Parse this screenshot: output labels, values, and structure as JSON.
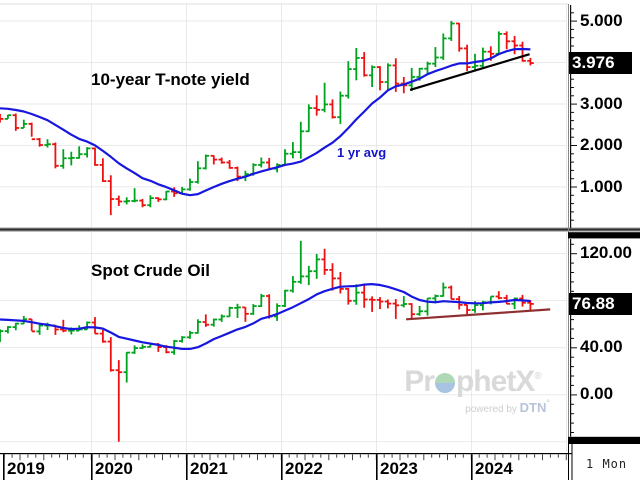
{
  "colors": {
    "bar_up": "#00a31e",
    "bar_down": "#ee1111",
    "ma_line": "#1717e0",
    "trend_black": "#000000",
    "trend_maroon": "#8f3030",
    "grid": "#e4e4e4",
    "price_box_bg": "#000000",
    "price_box_text": "#ffffff"
  },
  "watermark": {
    "brand_pre": "Pr",
    "brand_o": "o",
    "brand_post": "phetX",
    "registered_mark": "®",
    "powered_by": "powered by",
    "vendor": "DTN",
    "vendor_mark": "°"
  },
  "interval": {
    "label": "1 Mon"
  },
  "timeline": {
    "year_labels": [
      "2019",
      "2020",
      "2021",
      "2022",
      "2023",
      "2024"
    ]
  },
  "chart_data": [
    {
      "type": "ohlc",
      "title": "10-year T-note yield",
      "period": "monthly",
      "x_range": "2019-01 to 2024-08",
      "ma_label": "1 yr avg",
      "ma_window_months": 12,
      "last_price": 3.976,
      "last_price_text": "3.976",
      "y_axis": {
        "ylim": [
          0,
          5.4
        ],
        "major_step": 1,
        "minor_step": 0.2,
        "labels": [
          {
            "value": 5,
            "text": "5.000"
          },
          {
            "value": 3,
            "text": "3.000"
          },
          {
            "value": 2,
            "text": "2.000"
          },
          {
            "value": 1,
            "text": "1.000"
          }
        ]
      },
      "pre_ma_closes": [
        2.72,
        2.87,
        2.74,
        2.95,
        2.86,
        2.86,
        2.96,
        2.86,
        3.06,
        3.15,
        2.99,
        2.69
      ],
      "ohlc": [
        [
          2.66,
          2.75,
          2.54,
          2.63
        ],
        [
          2.63,
          2.73,
          2.63,
          2.72
        ],
        [
          2.72,
          2.76,
          2.34,
          2.41
        ],
        [
          2.41,
          2.61,
          2.41,
          2.51
        ],
        [
          2.51,
          2.54,
          2.2,
          2.14
        ],
        [
          2.14,
          2.17,
          1.96,
          2.0
        ],
        [
          2.0,
          2.14,
          1.94,
          2.02
        ],
        [
          2.02,
          2.06,
          1.44,
          1.5
        ],
        [
          1.5,
          1.9,
          1.43,
          1.68
        ],
        [
          1.68,
          1.84,
          1.51,
          1.69
        ],
        [
          1.69,
          1.97,
          1.67,
          1.78
        ],
        [
          1.78,
          1.95,
          1.7,
          1.92
        ],
        [
          1.92,
          1.94,
          1.5,
          1.52
        ],
        [
          1.52,
          1.68,
          1.11,
          1.13
        ],
        [
          1.13,
          1.27,
          0.31,
          0.7
        ],
        [
          0.7,
          0.78,
          0.53,
          0.64
        ],
        [
          0.64,
          0.74,
          0.57,
          0.65
        ],
        [
          0.65,
          0.96,
          0.62,
          0.66
        ],
        [
          0.66,
          0.7,
          0.5,
          0.55
        ],
        [
          0.55,
          0.79,
          0.5,
          0.72
        ],
        [
          0.72,
          0.74,
          0.63,
          0.69
        ],
        [
          0.69,
          0.89,
          0.67,
          0.88
        ],
        [
          0.88,
          0.98,
          0.75,
          0.84
        ],
        [
          0.84,
          0.99,
          0.82,
          0.93
        ],
        [
          0.93,
          1.19,
          0.9,
          1.11
        ],
        [
          1.11,
          1.61,
          1.07,
          1.44
        ],
        [
          1.44,
          1.77,
          1.41,
          1.74
        ],
        [
          1.74,
          1.75,
          1.53,
          1.65
        ],
        [
          1.65,
          1.7,
          1.55,
          1.58
        ],
        [
          1.58,
          1.64,
          1.43,
          1.45
        ],
        [
          1.45,
          1.48,
          1.13,
          1.24
        ],
        [
          1.24,
          1.38,
          1.13,
          1.3
        ],
        [
          1.3,
          1.56,
          1.26,
          1.52
        ],
        [
          1.52,
          1.7,
          1.46,
          1.58
        ],
        [
          1.58,
          1.69,
          1.41,
          1.43
        ],
        [
          1.43,
          1.56,
          1.34,
          1.52
        ],
        [
          1.52,
          1.9,
          1.51,
          1.79
        ],
        [
          1.79,
          2.07,
          1.68,
          1.83
        ],
        [
          1.83,
          2.56,
          1.67,
          2.33
        ],
        [
          2.33,
          2.98,
          2.32,
          2.89
        ],
        [
          2.89,
          3.2,
          2.71,
          2.85
        ],
        [
          2.85,
          3.5,
          2.79,
          2.98
        ],
        [
          2.98,
          3.1,
          2.64,
          2.67
        ],
        [
          2.67,
          3.29,
          2.51,
          3.19
        ],
        [
          3.19,
          4.02,
          3.12,
          3.83
        ],
        [
          3.83,
          4.34,
          3.56,
          4.1
        ],
        [
          4.1,
          4.24,
          3.65,
          3.68
        ],
        [
          3.68,
          3.92,
          3.4,
          3.88
        ],
        [
          3.88,
          3.9,
          3.32,
          3.52
        ],
        [
          3.52,
          3.97,
          3.33,
          3.92
        ],
        [
          3.92,
          4.09,
          3.28,
          3.48
        ],
        [
          3.48,
          3.64,
          3.25,
          3.44
        ],
        [
          3.44,
          3.86,
          3.3,
          3.64
        ],
        [
          3.64,
          3.86,
          3.55,
          3.84
        ],
        [
          3.84,
          4.01,
          3.73,
          3.96
        ],
        [
          3.96,
          4.36,
          3.88,
          4.11
        ],
        [
          4.11,
          4.69,
          4.05,
          4.57
        ],
        [
          4.57,
          4.99,
          4.51,
          4.93
        ],
        [
          4.93,
          4.94,
          4.25,
          4.33
        ],
        [
          4.33,
          4.42,
          3.78,
          3.88
        ],
        [
          3.88,
          4.2,
          3.81,
          3.91
        ],
        [
          3.91,
          4.35,
          3.85,
          4.25
        ],
        [
          4.25,
          4.38,
          4.03,
          4.2
        ],
        [
          4.2,
          4.74,
          4.19,
          4.68
        ],
        [
          4.68,
          4.74,
          4.31,
          4.5
        ],
        [
          4.5,
          4.63,
          4.19,
          4.4
        ],
        [
          4.4,
          4.49,
          4.01,
          4.03
        ],
        [
          4.03,
          4.1,
          3.92,
          3.976
        ]
      ],
      "trendline": {
        "i1": 51.8,
        "v1": 3.33,
        "i2": 66.9,
        "v2": 4.19,
        "color_key": "trend_black"
      }
    },
    {
      "type": "ohlc",
      "title": "Spot Crude Oil",
      "period": "monthly",
      "x_range": "2019-01 to 2024-08",
      "ma_label": "1 yr avg",
      "ma_window_months": 12,
      "last_price": 76.88,
      "last_price_text": "76.88",
      "y_axis": {
        "ylim": [
          -49,
          138
        ],
        "major_step": 40,
        "minor_step": 8,
        "labels": [
          {
            "value": 120,
            "text": "120.00"
          },
          {
            "value": 40,
            "text": "40.00"
          },
          {
            "value": 0,
            "text": "0.00"
          }
        ]
      },
      "pre_ma_closes": [
        64.7,
        61.6,
        64.9,
        68.6,
        67.0,
        74.2,
        68.8,
        69.8,
        73.3,
        65.3,
        50.9,
        45.4
      ],
      "ohlc": [
        [
          45.4,
          55.4,
          44.4,
          53.8
        ],
        [
          53.8,
          57.9,
          51.8,
          57.2
        ],
        [
          57.2,
          60.7,
          54.5,
          60.1
        ],
        [
          60.1,
          66.6,
          60.0,
          63.9
        ],
        [
          63.9,
          64.0,
          53.9,
          53.5
        ],
        [
          53.5,
          59.9,
          50.6,
          58.5
        ],
        [
          58.5,
          60.9,
          54.7,
          58.6
        ],
        [
          58.6,
          58.8,
          50.5,
          55.1
        ],
        [
          55.1,
          63.4,
          52.8,
          54.1
        ],
        [
          54.1,
          56.9,
          50.9,
          54.2
        ],
        [
          54.2,
          58.7,
          54.1,
          55.2
        ],
        [
          55.2,
          61.9,
          55.0,
          61.1
        ],
        [
          61.1,
          65.7,
          51.6,
          51.6
        ],
        [
          51.6,
          54.7,
          43.9,
          44.8
        ],
        [
          44.8,
          48.7,
          19.3,
          20.5
        ],
        [
          20.5,
          29.1,
          -40.3,
          18.8
        ],
        [
          18.8,
          35.8,
          10.1,
          35.5
        ],
        [
          35.5,
          41.6,
          34.4,
          39.3
        ],
        [
          39.3,
          42.5,
          38.5,
          40.3
        ],
        [
          40.3,
          43.8,
          39.9,
          42.6
        ],
        [
          42.6,
          43.6,
          36.1,
          40.2
        ],
        [
          40.2,
          41.9,
          34.9,
          35.8
        ],
        [
          35.8,
          46.3,
          33.6,
          45.3
        ],
        [
          45.3,
          49.4,
          44.0,
          48.5
        ],
        [
          48.5,
          53.9,
          47.2,
          52.2
        ],
        [
          52.2,
          63.8,
          51.6,
          61.5
        ],
        [
          61.5,
          68.0,
          57.3,
          59.2
        ],
        [
          59.2,
          64.4,
          57.6,
          63.6
        ],
        [
          63.6,
          68.0,
          61.6,
          66.3
        ],
        [
          66.3,
          74.5,
          66.1,
          73.5
        ],
        [
          73.5,
          77.0,
          65.0,
          73.9
        ],
        [
          73.9,
          74.2,
          61.7,
          68.5
        ],
        [
          68.5,
          76.7,
          67.6,
          75.0
        ],
        [
          75.0,
          85.4,
          74.3,
          83.6
        ],
        [
          83.6,
          85.1,
          64.4,
          66.2
        ],
        [
          66.2,
          77.3,
          62.4,
          75.2
        ],
        [
          75.2,
          88.8,
          74.3,
          88.2
        ],
        [
          88.2,
          100.5,
          86.5,
          95.7
        ],
        [
          95.7,
          130.5,
          94.0,
          100.3
        ],
        [
          100.3,
          109.2,
          92.9,
          104.7
        ],
        [
          104.7,
          119.4,
          98.2,
          114.7
        ],
        [
          114.7,
          123.7,
          101.5,
          105.8
        ],
        [
          105.8,
          111.5,
          88.2,
          98.6
        ],
        [
          98.6,
          104.0,
          85.7,
          89.6
        ],
        [
          89.6,
          90.4,
          76.3,
          79.5
        ],
        [
          79.5,
          93.6,
          76.1,
          86.5
        ],
        [
          86.5,
          93.7,
          73.6,
          80.6
        ],
        [
          80.6,
          83.3,
          70.1,
          80.3
        ],
        [
          80.3,
          82.7,
          72.5,
          78.9
        ],
        [
          78.9,
          80.6,
          73.1,
          77.1
        ],
        [
          77.1,
          81.0,
          64.1,
          75.7
        ],
        [
          75.7,
          83.5,
          73.9,
          76.8
        ],
        [
          76.8,
          77.4,
          63.6,
          68.1
        ],
        [
          68.1,
          75.1,
          66.8,
          70.6
        ],
        [
          70.6,
          81.7,
          66.9,
          81.6
        ],
        [
          81.6,
          84.9,
          77.6,
          83.6
        ],
        [
          83.6,
          95.0,
          83.0,
          90.8
        ],
        [
          90.8,
          92.5,
          80.9,
          81.0
        ],
        [
          81.0,
          83.6,
          72.2,
          76.0
        ],
        [
          76.0,
          76.1,
          67.7,
          71.7
        ],
        [
          71.7,
          79.3,
          69.3,
          75.9
        ],
        [
          75.9,
          79.6,
          71.4,
          78.3
        ],
        [
          78.3,
          83.3,
          76.5,
          83.2
        ],
        [
          83.2,
          87.7,
          80.8,
          81.9
        ],
        [
          81.9,
          84.5,
          76.7,
          77.0
        ],
        [
          77.0,
          82.2,
          72.5,
          81.5
        ],
        [
          81.5,
          84.5,
          74.6,
          77.9
        ],
        [
          77.9,
          80.2,
          71.5,
          76.88
        ]
      ],
      "trendline": {
        "i1": 51.3,
        "v1": 63.8,
        "i2": 69.5,
        "v2": 72.2,
        "color_key": "trend_maroon"
      }
    }
  ]
}
